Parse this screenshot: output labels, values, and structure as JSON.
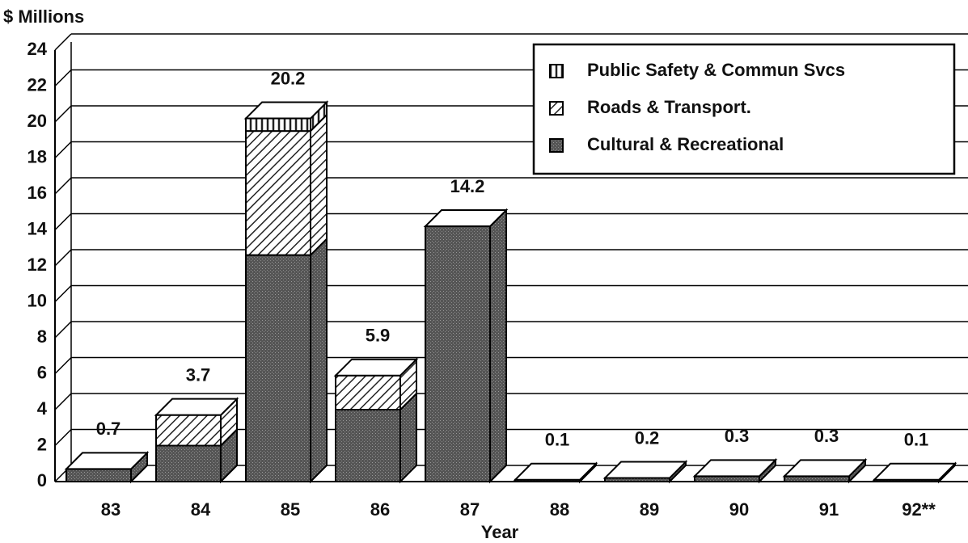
{
  "chart_data": {
    "type": "bar3d_stacked",
    "y_axis_label": "$ Millions",
    "x_axis_label": "Year",
    "categories": [
      "83",
      "84",
      "85",
      "86",
      "87",
      "88",
      "89",
      "90",
      "91",
      "92**"
    ],
    "series": [
      {
        "name": "Cultural & Recreational",
        "color": "#4d4d4d",
        "values": [
          0.7,
          2.0,
          12.6,
          4.0,
          14.2,
          0.1,
          0.2,
          0.3,
          0.3,
          0.1
        ]
      },
      {
        "name": "Roads & Transport.",
        "color": "#777777",
        "values": [
          0,
          1.7,
          6.9,
          1.9,
          0,
          0,
          0,
          0,
          0,
          0
        ]
      },
      {
        "name": "Public Safety & Commun Svcs",
        "color": "#999999",
        "values": [
          0,
          0,
          0.7,
          0,
          0,
          0,
          0,
          0,
          0,
          0
        ]
      }
    ],
    "totals": [
      0.7,
      3.7,
      20.2,
      5.9,
      14.2,
      0.1,
      0.2,
      0.3,
      0.3,
      0.1
    ],
    "ylim": [
      0,
      24
    ],
    "yticks": [
      0,
      2,
      4,
      6,
      8,
      10,
      12,
      14,
      16,
      18,
      20,
      22,
      24
    ],
    "grid": true,
    "legend": "upper right"
  }
}
